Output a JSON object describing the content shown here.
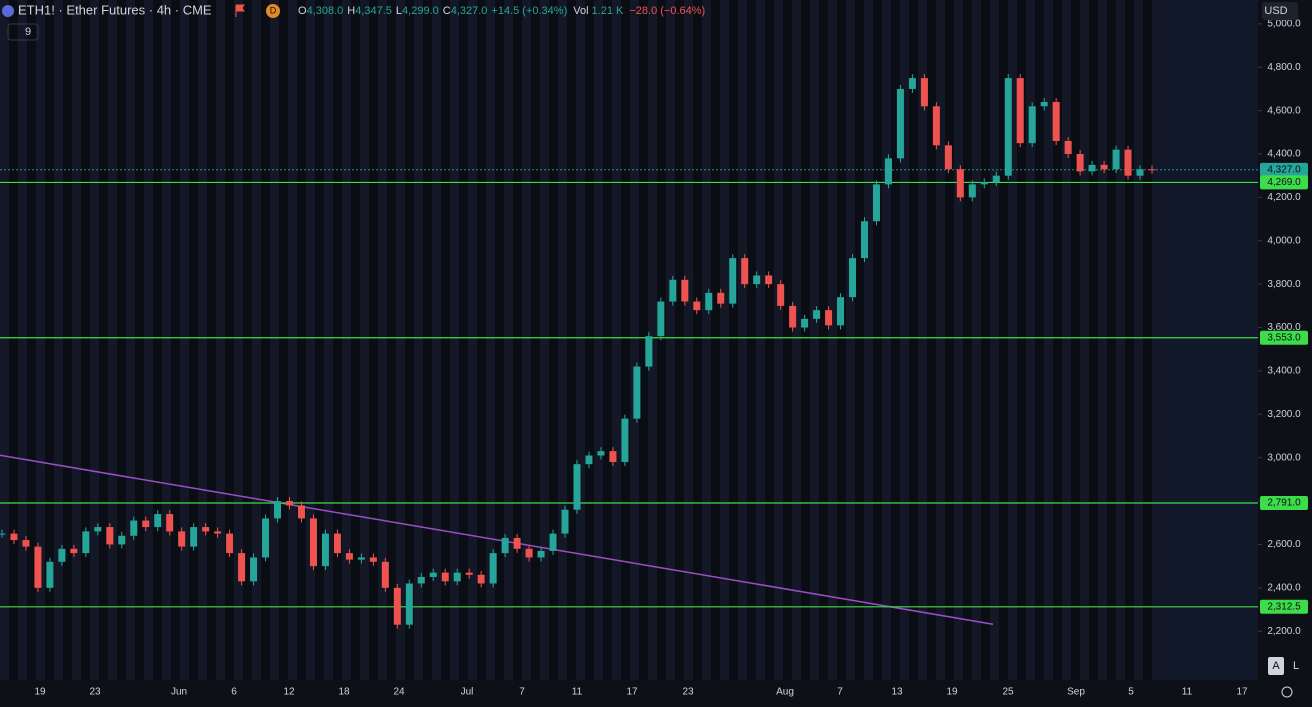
{
  "chart_data": {
    "type": "candlestick",
    "title": "ETH1! · Ether Futures · 4h · CME",
    "header": {
      "badge": "D",
      "ohlc": [
        {
          "label": "O",
          "value": "4,308.0"
        },
        {
          "label": "H",
          "value": "4,347.5"
        },
        {
          "label": "L",
          "value": "4,299.0"
        },
        {
          "label": "C",
          "value": "4,327.0"
        }
      ],
      "change": "+14.5 (+0.34%)",
      "vol_label": "Vol",
      "vol": "1.21 K",
      "vol_change": "−28.0 (−0.64%)"
    },
    "indicators": "9",
    "currency": "USD",
    "buttons": [
      "A",
      "L"
    ],
    "up_color": "#26a69a",
    "down_color": "#ef5350",
    "close": [
      2650,
      2620,
      2590,
      2400,
      2520,
      2580,
      2560,
      2660,
      2680,
      2600,
      2640,
      2710,
      2680,
      2740,
      2660,
      2590,
      2680,
      2660,
      2650,
      2560,
      2430,
      2540,
      2720,
      2800,
      2780,
      2720,
      2500,
      2650,
      2560,
      2530,
      2540,
      2520,
      2400,
      2230,
      2420,
      2450,
      2470,
      2430,
      2470,
      2460,
      2420,
      2560,
      2630,
      2580,
      2540,
      2570,
      2650,
      2760,
      2970,
      3010,
      3030,
      2980,
      3180,
      3420,
      3560,
      3720,
      3820,
      3720,
      3680,
      3760,
      3710,
      3920,
      3800,
      3840,
      3800,
      3700,
      3600,
      3640,
      3680,
      3610,
      3740,
      3920,
      4090,
      4260,
      4380,
      4700,
      4750,
      4620,
      4440,
      4330,
      4200,
      4260,
      4270,
      4300,
      4750,
      4450,
      4620,
      4640,
      4460,
      4400,
      4320,
      4350,
      4330,
      4420,
      4300,
      4330,
      4327
    ],
    "ylim": [
      1975,
      5110
    ],
    "yticks": [
      {
        "value": 2200,
        "label": "2,200.0"
      },
      {
        "value": 2400,
        "label": "2,400.0"
      },
      {
        "value": 2600,
        "label": "2,600.0"
      },
      {
        "value": 2800,
        "label": "2,800.0"
      },
      {
        "value": 3000,
        "label": "3,000.0"
      },
      {
        "value": 3200,
        "label": "3,200.0"
      },
      {
        "value": 3400,
        "label": "3,400.0"
      },
      {
        "value": 3600,
        "label": "3,600.0"
      },
      {
        "value": 3800,
        "label": "3,800.0"
      },
      {
        "value": 4000,
        "label": "4,000.0"
      },
      {
        "value": 4200,
        "label": "4,200.0"
      },
      {
        "value": 4400,
        "label": "4,400.0"
      },
      {
        "value": 4600,
        "label": "4,600.0"
      },
      {
        "value": 4800,
        "label": "4,800.0"
      },
      {
        "value": 5000,
        "label": "5,000.0"
      }
    ],
    "xtick_labels": [
      "19",
      "23",
      "Jun",
      "6",
      "12",
      "18",
      "24",
      "Jul",
      "7",
      "11",
      "17",
      "23",
      "Aug",
      "7",
      "13",
      "19",
      "25",
      "Sep",
      "5",
      "11",
      "17"
    ],
    "levels": [
      {
        "value": 4327,
        "label": "4,327.0",
        "color": "#26a69a"
      },
      {
        "value": 4269,
        "label": "4,269.0",
        "color": "#3ddc4a"
      },
      {
        "value": 3553,
        "label": "3,553.0",
        "color": "#3ddc4a"
      },
      {
        "value": 2791,
        "label": "2,791.0",
        "color": "#3ddc4a"
      },
      {
        "value": 2312.5,
        "label": "2,312.5",
        "color": "#3ddc4a"
      }
    ],
    "trendline": {
      "values": [
        3011,
        2232
      ],
      "color": "#9c4fc4"
    }
  }
}
